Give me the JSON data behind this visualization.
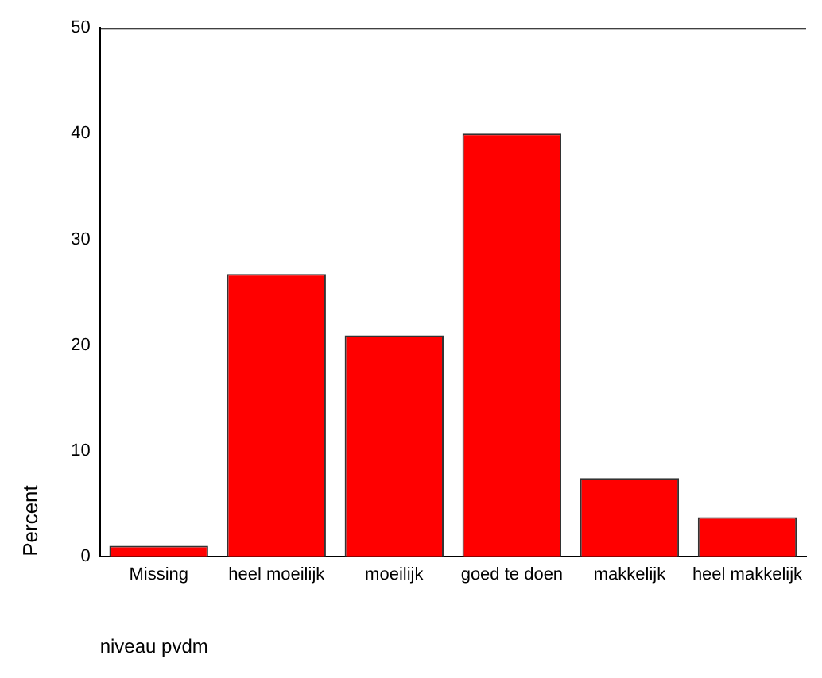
{
  "chart_data": {
    "type": "bar",
    "xlabel": "niveau pvdm",
    "ylabel": "Percent",
    "categories": [
      "Missing",
      "heel moeilijk",
      "moeilijk",
      "goed te doen",
      "makkelijk",
      "heel makkelijk"
    ],
    "values": [
      1.0,
      26.7,
      20.9,
      40.0,
      7.4,
      3.7
    ],
    "color": "#ff0000",
    "ylim": [
      0,
      50
    ],
    "yticks": [
      0,
      10,
      20,
      30,
      40,
      50
    ],
    "grid": false,
    "legend": false
  }
}
